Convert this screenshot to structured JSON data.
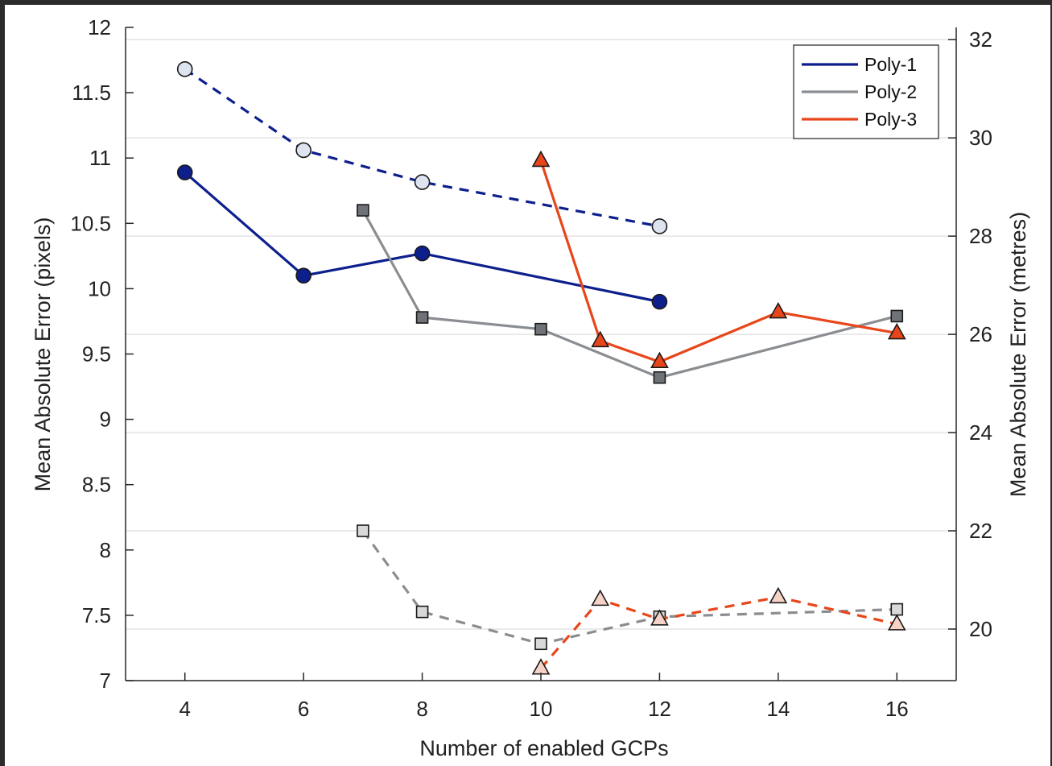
{
  "chart_data": {
    "type": "line",
    "xlabel": "Number of enabled GCPs",
    "ylabel_left": "Mean Absolute Error (pixels)",
    "ylabel_right": "Mean Absolute Error (metres)",
    "xlim": [
      3,
      17
    ],
    "ylim_left": [
      7,
      12
    ],
    "ylim_right": [
      18.95,
      32.25
    ],
    "x_ticks": [
      4,
      6,
      8,
      10,
      12,
      14,
      16
    ],
    "y_ticks_left": [
      7,
      7.5,
      8,
      8.5,
      9,
      9.5,
      10,
      10.5,
      11,
      11.5,
      12
    ],
    "y_ticks_right": [
      20,
      22,
      24,
      26,
      28,
      30,
      32
    ],
    "grid": "horizontal",
    "legend_position": "top-right",
    "series": [
      {
        "name": "Poly-1",
        "axis": "left",
        "line": "solid",
        "marker": "circle",
        "filled": true,
        "color": "#0d1f8c",
        "x": [
          4,
          6,
          8,
          12
        ],
        "y": [
          10.89,
          10.1,
          10.27,
          9.9
        ]
      },
      {
        "name": "Poly-2",
        "axis": "left",
        "line": "solid",
        "marker": "square",
        "filled": true,
        "color": "#8a8d91",
        "x": [
          7,
          8,
          10,
          12,
          16
        ],
        "y": [
          10.6,
          9.78,
          9.69,
          9.32,
          9.79
        ]
      },
      {
        "name": "Poly-3",
        "axis": "left",
        "line": "solid",
        "marker": "triangle",
        "filled": true,
        "color": "#e8461a",
        "x": [
          10,
          11,
          12,
          14,
          16
        ],
        "y": [
          10.98,
          9.6,
          9.44,
          9.82,
          9.66
        ]
      },
      {
        "axis": "right",
        "line": "dashed",
        "marker": "circle",
        "filled": false,
        "color": "#0d1f8c",
        "x": [
          4,
          6,
          8,
          12
        ],
        "y": [
          31.4,
          29.75,
          29.1,
          28.2
        ]
      },
      {
        "axis": "right",
        "line": "dashed",
        "marker": "square",
        "filled": false,
        "color": "#8a8d91",
        "x": [
          7,
          8,
          10,
          12,
          16
        ],
        "y": [
          22,
          20.35,
          19.7,
          20.25,
          20.4
        ]
      },
      {
        "axis": "right",
        "line": "dashed",
        "marker": "triangle",
        "filled": false,
        "color": "#e8461a",
        "x": [
          10,
          11,
          12,
          14,
          16
        ],
        "y": [
          19.2,
          20.6,
          20.2,
          20.65,
          20.1
        ]
      }
    ]
  }
}
